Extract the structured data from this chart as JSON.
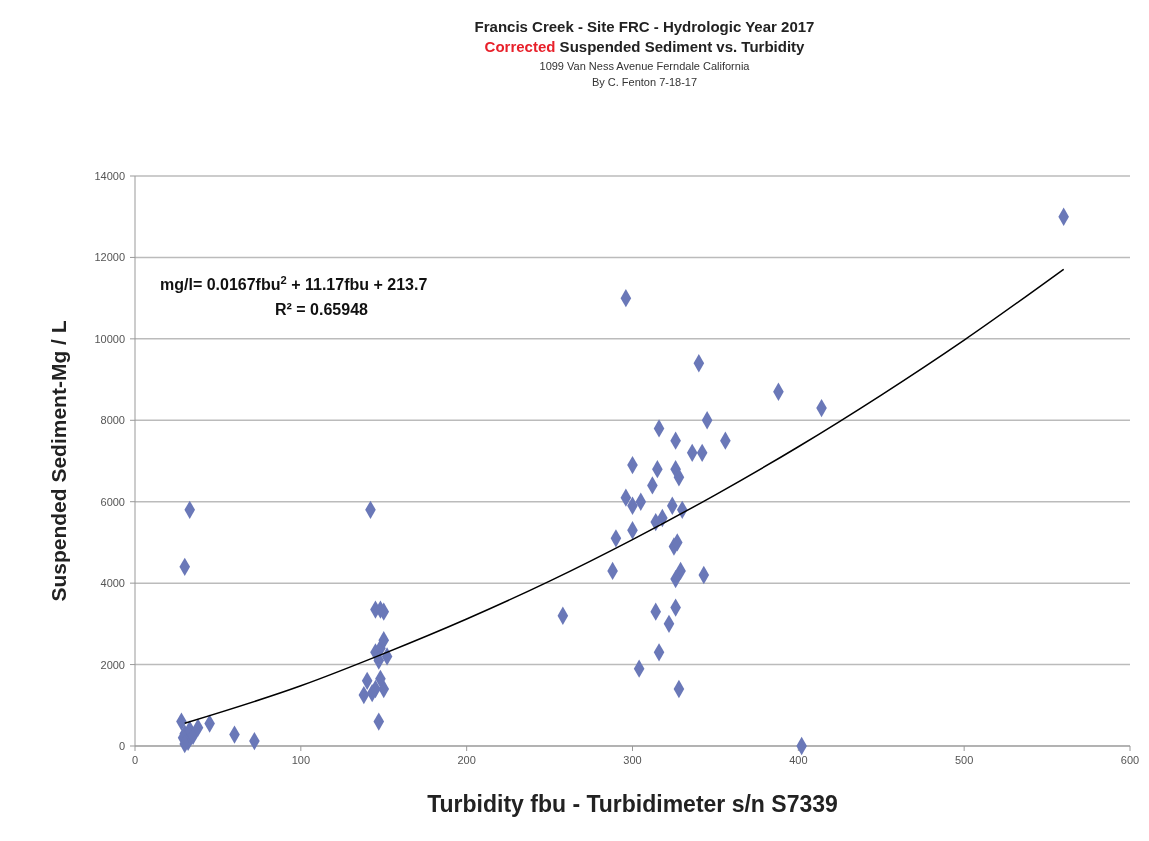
{
  "chart_data": {
    "type": "scatter",
    "title": "Francis Creek - Site FRC - Hydrologic Year 2017",
    "subtitle": "Corrected Suspended Sediment vs. Turbidity",
    "xlabel": "Turbidity fbu - Turbidimeter s/n S7339",
    "ylabel": "Suspended Sediment-Mg / L",
    "annotations": [
      "1099 Van Ness Avenue Ferndale California",
      "By C. Fenton 7-18-17",
      "mg/l= 0.0167fbu$^{2}$ + 11.17fbu + 213.7",
      "R² = 0.65948"
    ],
    "xlim": [
      0,
      600
    ],
    "xticks": [
      0,
      100,
      200,
      300,
      400,
      500,
      600
    ],
    "ylim": [
      0,
      14000
    ],
    "yticks": [
      0,
      2000,
      4000,
      6000,
      8000,
      10000,
      12000,
      14000
    ],
    "grid": "y",
    "marker": "diamond",
    "series": [
      {
        "color": "#6a78b8",
        "x": [
          30,
          33,
          28,
          30,
          32,
          29,
          33,
          35,
          38,
          45,
          60,
          72,
          30,
          142,
          145,
          148,
          150,
          145,
          148,
          150,
          152,
          147,
          140,
          145,
          150,
          138,
          148,
          147,
          143,
          258,
          296,
          340,
          388,
          414,
          345,
          316,
          326,
          356,
          336,
          342,
          300,
          315,
          326,
          328,
          312,
          296,
          305,
          300,
          324,
          330,
          318,
          314,
          300,
          290,
          325,
          327,
          288,
          329,
          326,
          343,
          314,
          326,
          322,
          316,
          304,
          328,
          402,
          560
        ],
        "values": [
          4400,
          5800,
          600,
          300,
          100,
          200,
          400,
          250,
          450,
          550,
          280,
          120,
          50,
          5800,
          3350,
          3350,
          3300,
          2300,
          2400,
          2600,
          2200,
          2100,
          1600,
          1400,
          1400,
          1250,
          1650,
          600,
          1300,
          3200,
          11000,
          9400,
          8700,
          8300,
          8000,
          7800,
          7500,
          7500,
          7200,
          7200,
          6900,
          6800,
          6800,
          6600,
          6400,
          6100,
          6000,
          5900,
          5900,
          5800,
          5600,
          5500,
          5300,
          5100,
          4900,
          5000,
          4300,
          4300,
          4100,
          4200,
          3300,
          3400,
          3000,
          2300,
          1900,
          1400,
          0,
          13000
        ]
      },
      {
        "type": "line",
        "color": "#000000",
        "marker": "none",
        "x": [
          30,
          100,
          150,
          200,
          250,
          300,
          350,
          400,
          450,
          500,
          560
        ],
        "values": [
          560,
          1480,
          2270,
          3120,
          4050,
          5070,
          6170,
          7350,
          8620,
          9970,
          11710
        ]
      }
    ]
  }
}
